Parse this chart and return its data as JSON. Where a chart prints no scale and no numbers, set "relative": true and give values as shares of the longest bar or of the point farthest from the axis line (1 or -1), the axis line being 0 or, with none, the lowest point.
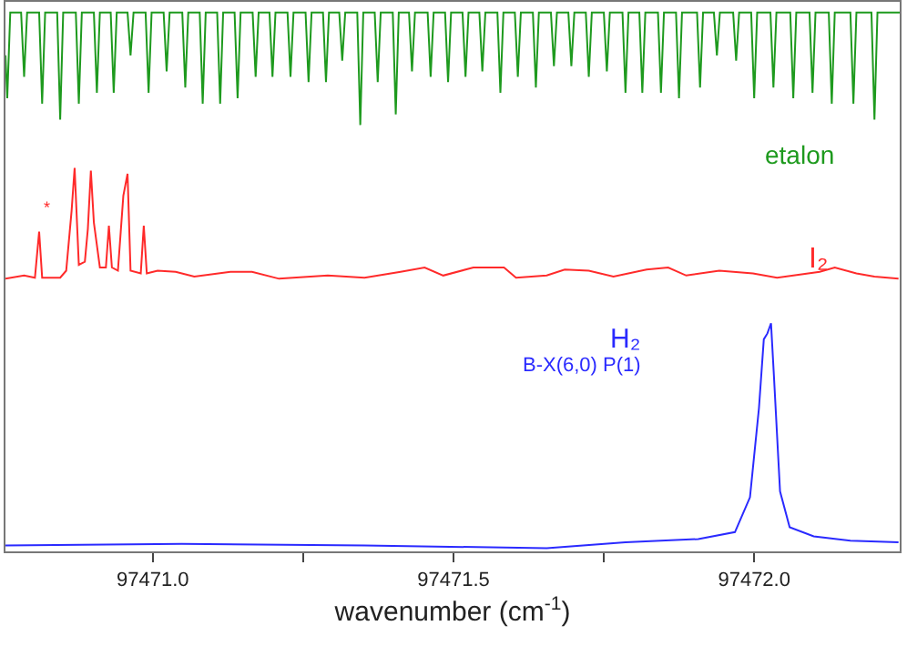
{
  "chart_data": {
    "type": "line",
    "relative": true,
    "xlabel": "wavenumber (cm$^{-1}$)",
    "xlim": [
      97470.755,
      97472.242
    ],
    "xticks": [
      {
        "value": 97471.0,
        "label": "97471.0"
      },
      {
        "value": 97471.25,
        "label": null
      },
      {
        "value": 97471.5,
        "label": "97471.5"
      },
      {
        "value": 97471.75,
        "label": null
      },
      {
        "value": 97472.0,
        "label": "97472.0"
      }
    ],
    "legend": false,
    "tick_labels": "x",
    "series": [
      {
        "name": "etalon",
        "color": "#1e9a1e",
        "x": [
          97470.755,
          97470.758,
          97470.763,
          97470.781,
          97470.786,
          97470.791,
          97470.811,
          97470.816,
          97470.821,
          97470.841,
          97470.846,
          97470.851,
          97470.872,
          97470.877,
          97470.882,
          97470.902,
          97470.907,
          97470.912,
          97470.93,
          97470.935,
          97470.94,
          97470.958,
          97470.963,
          97470.968,
          97470.988,
          97470.993,
          97470.998,
          97471.018,
          97471.023,
          97471.028,
          97471.049,
          97471.054,
          97471.059,
          97471.078,
          97471.083,
          97471.088,
          97471.107,
          97471.112,
          97471.117,
          97471.136,
          97471.141,
          97471.146,
          97471.166,
          97471.171,
          97471.176,
          97471.194,
          97471.199,
          97471.204,
          97471.224,
          97471.229,
          97471.234,
          97471.254,
          97471.259,
          97471.264,
          97471.283,
          97471.288,
          97471.293,
          97471.31,
          97471.315,
          97471.32,
          97471.34,
          97471.345,
          97471.35,
          97471.369,
          97471.374,
          97471.379,
          97471.399,
          97471.404,
          97471.409,
          97471.426,
          97471.431,
          97471.436,
          97471.457,
          97471.462,
          97471.467,
          97471.486,
          97471.491,
          97471.496,
          97471.515,
          97471.52,
          97471.525,
          97471.543,
          97471.548,
          97471.553,
          97471.573,
          97471.578,
          97471.583,
          97471.602,
          97471.607,
          97471.612,
          97471.632,
          97471.637,
          97471.642,
          97471.662,
          97471.667,
          97471.672,
          97471.691,
          97471.696,
          97471.701,
          97471.72,
          97471.725,
          97471.73,
          97471.75,
          97471.755,
          97471.76,
          97471.781,
          97471.786,
          97471.791,
          97471.809,
          97471.814,
          97471.819,
          97471.84,
          97471.845,
          97471.85,
          97471.87,
          97471.875,
          97471.88,
          97471.905,
          97471.91,
          97471.915,
          97471.933,
          97471.938,
          97471.943,
          97471.965,
          97471.97,
          97471.975,
          97471.995,
          97472.0,
          97472.005,
          97472.027,
          97472.032,
          97472.037,
          97472.06,
          97472.065,
          97472.07,
          97472.092,
          97472.097,
          97472.102,
          97472.124,
          97472.129,
          97472.134,
          97472.16,
          97472.165,
          97472.17,
          97472.195,
          97472.2,
          97472.205,
          97472.242
        ],
        "values": [
          0.92,
          0.84,
          1.0,
          1.0,
          0.88,
          1.0,
          1.0,
          0.83,
          1.0,
          1.0,
          0.8,
          1.0,
          1.0,
          0.83,
          1.0,
          1.0,
          0.85,
          1.0,
          1.0,
          0.85,
          1.0,
          1.0,
          0.92,
          1.0,
          1.0,
          0.85,
          1.0,
          1.0,
          0.89,
          1.0,
          1.0,
          0.86,
          1.0,
          1.0,
          0.83,
          1.0,
          1.0,
          0.83,
          1.0,
          1.0,
          0.84,
          1.0,
          1.0,
          0.88,
          1.0,
          1.0,
          0.88,
          1.0,
          1.0,
          0.88,
          1.0,
          1.0,
          0.87,
          1.0,
          1.0,
          0.87,
          1.0,
          1.0,
          0.91,
          1.0,
          1.0,
          0.79,
          1.0,
          1.0,
          0.87,
          1.0,
          1.0,
          0.81,
          1.0,
          1.0,
          0.89,
          1.0,
          1.0,
          0.88,
          1.0,
          1.0,
          0.87,
          1.0,
          1.0,
          0.88,
          1.0,
          1.0,
          0.89,
          1.0,
          1.0,
          0.85,
          1.0,
          1.0,
          0.88,
          1.0,
          1.0,
          0.86,
          1.0,
          1.0,
          0.9,
          1.0,
          1.0,
          0.9,
          1.0,
          1.0,
          0.88,
          1.0,
          1.0,
          0.89,
          1.0,
          1.0,
          0.85,
          1.0,
          1.0,
          0.85,
          1.0,
          1.0,
          0.85,
          1.0,
          1.0,
          0.84,
          1.0,
          1.0,
          0.86,
          1.0,
          1.0,
          0.92,
          1.0,
          1.0,
          0.91,
          1.0,
          1.0,
          0.84,
          1.0,
          1.0,
          0.86,
          1.0,
          1.0,
          0.84,
          1.0,
          1.0,
          0.85,
          1.0,
          1.0,
          0.83,
          1.0,
          1.0,
          0.83,
          1.0,
          1.0,
          0.8,
          1.0,
          1.0
        ]
      },
      {
        "name": "I₂",
        "color": "#ff2a2a",
        "x": [
          97470.755,
          97470.786,
          97470.804,
          97470.811,
          97470.816,
          97470.846,
          97470.856,
          97470.865,
          97470.87,
          97470.877,
          97470.887,
          97470.892,
          97470.897,
          97470.902,
          97470.912,
          97470.922,
          97470.927,
          97470.932,
          97470.942,
          97470.951,
          97470.958,
          97470.963,
          97470.98,
          97470.985,
          97470.99,
          97471.008,
          97471.038,
          97471.069,
          97471.129,
          97471.165,
          97471.21,
          97471.291,
          97471.352,
          97471.412,
          97471.452,
          97471.483,
          97471.533,
          97471.584,
          97471.604,
          97471.655,
          97471.685,
          97471.725,
          97471.766,
          97471.821,
          97471.857,
          97471.887,
          97471.942,
          97471.998,
          97472.038,
          97472.109,
          97472.134,
          97472.17,
          97472.2,
          97472.24
        ],
        "values": [
          0.503,
          0.509,
          0.505,
          0.591,
          0.505,
          0.505,
          0.518,
          0.63,
          0.71,
          0.529,
          0.535,
          0.596,
          0.705,
          0.608,
          0.524,
          0.524,
          0.602,
          0.524,
          0.518,
          0.658,
          0.699,
          0.518,
          0.513,
          0.602,
          0.513,
          0.518,
          0.516,
          0.507,
          0.516,
          0.516,
          0.503,
          0.509,
          0.505,
          0.516,
          0.524,
          0.509,
          0.524,
          0.524,
          0.505,
          0.509,
          0.52,
          0.518,
          0.507,
          0.52,
          0.524,
          0.509,
          0.518,
          0.513,
          0.505,
          0.516,
          0.524,
          0.513,
          0.507,
          0.503
        ]
      },
      {
        "name": "H₂",
        "color": "#2a2aff",
        "x": [
          97470.755,
          97471.048,
          97471.352,
          97471.655,
          97471.786,
          97471.907,
          97471.968,
          97471.993,
          97472.008,
          97472.016,
          97472.022,
          97472.028,
          97472.033,
          97472.043,
          97472.059,
          97472.099,
          97472.16,
          97472.24
        ],
        "values": [
          0.005,
          0.008,
          0.005,
          0.0,
          0.011,
          0.017,
          0.03,
          0.095,
          0.262,
          0.39,
          0.401,
          0.42,
          0.318,
          0.106,
          0.039,
          0.022,
          0.014,
          0.011
        ]
      }
    ],
    "annotations": [
      "B-X(6,0) P(1)",
      "*"
    ]
  }
}
